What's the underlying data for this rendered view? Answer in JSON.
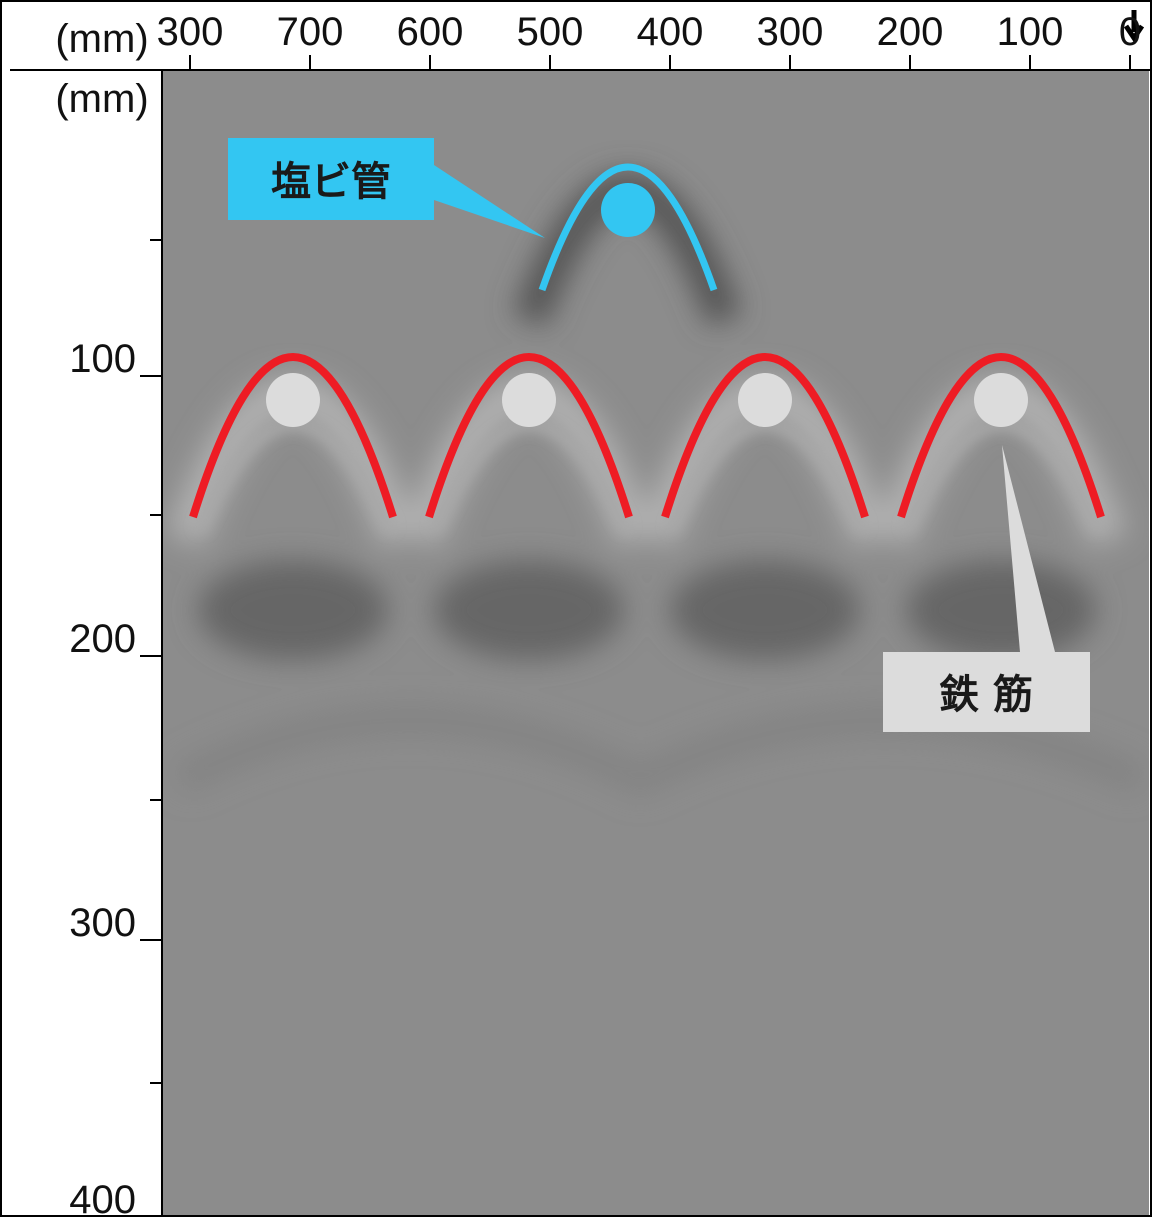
{
  "top_axis": {
    "unit": "(mm)",
    "ticks": [
      "300",
      "700",
      "600",
      "500",
      "400",
      "300",
      "200",
      "100",
      "0"
    ]
  },
  "left_axis": {
    "unit": "(mm)",
    "ticks": [
      "100",
      "200",
      "300",
      "400"
    ]
  },
  "annotations": {
    "pipe": "塩ビ管",
    "rebar": "鉄 筋"
  }
}
